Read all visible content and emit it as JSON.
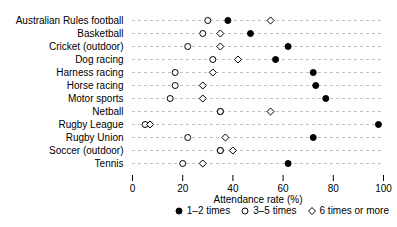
{
  "chart_data": {
    "type": "dot",
    "xlabel": "Attendance rate (%)",
    "categories": [
      "Tennis",
      "Soccer (outdoor)",
      "Rugby Union",
      "Rugby League",
      "Netball",
      "Motor sports",
      "Horse racing",
      "Harness racing",
      "Dog racing",
      "Cricket (outdoor)",
      "Basketball",
      "Australian Rules football"
    ],
    "series": [
      {
        "name": "1–2 times",
        "color": "#000000",
        "marker": "circle",
        "values": [
          62,
          35,
          72,
          98,
          35,
          77,
          73,
          72,
          57,
          62,
          47,
          38
        ]
      },
      {
        "name": "3–5 times",
        "color": "#000000",
        "marker": "circle_open",
        "values": [
          20,
          35,
          22,
          5,
          35,
          15,
          17,
          17,
          32,
          22,
          28,
          30
        ]
      },
      {
        "name": "6 times or more",
        "color": "#000000",
        "marker": "diamond_open",
        "values": [
          28,
          40,
          37,
          7,
          55,
          28,
          28,
          32,
          42,
          35,
          35,
          55
        ]
      }
    ],
    "xlim": [
      0,
      100
    ],
    "xticks": [
      0,
      20,
      40,
      60,
      80,
      100
    ],
    "grid": true,
    "legend": "lower right"
  }
}
